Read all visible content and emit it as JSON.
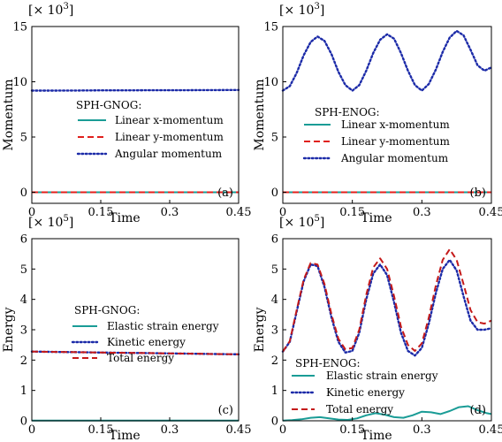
{
  "colors": {
    "elastic": "#1a9c96",
    "linear_x": "#1a9c96",
    "linear_y": "#e0201c",
    "total": "#c41a1a",
    "kinetic": "#1c2ba8",
    "angular": "#1c2ba8"
  },
  "chart_data": [
    {
      "type": "line",
      "panel_label": "(a)",
      "xlabel": "Time",
      "ylabel": "Momentum",
      "multiplier": "[× 10",
      "multiplier_exp": "3",
      "multiplier_close": "]",
      "xlim": [
        0,
        0.45
      ],
      "ylim": [
        -1,
        15
      ],
      "xticks": [
        0,
        0.15,
        0.3,
        0.45
      ],
      "xtick_labels": [
        "0",
        "0.15",
        "0.3",
        "0.45"
      ],
      "yticks": [
        0,
        5,
        10,
        15
      ],
      "ytick_labels": [
        "0",
        "5",
        "10",
        "15"
      ],
      "legend_title": "SPH-GNOG:",
      "legend_position": "center-left",
      "series": [
        {
          "name": "Linear x-momentum",
          "style": "solid",
          "color_key": "linear_x",
          "x": [
            0,
            0.05,
            0.1,
            0.15,
            0.2,
            0.25,
            0.3,
            0.35,
            0.4,
            0.45
          ],
          "y": [
            0,
            0,
            0,
            0,
            0,
            0,
            0,
            0,
            0,
            0
          ]
        },
        {
          "name": "Linear y-momentum",
          "style": "dashed",
          "color_key": "linear_y",
          "x": [
            0,
            0.05,
            0.1,
            0.15,
            0.2,
            0.25,
            0.3,
            0.35,
            0.4,
            0.45
          ],
          "y": [
            0,
            0,
            0,
            0,
            0,
            0,
            0,
            0,
            0,
            0
          ]
        },
        {
          "name": "Angular momentum",
          "style": "dotted",
          "color_key": "angular",
          "x": [
            0,
            0.05,
            0.1,
            0.15,
            0.2,
            0.25,
            0.3,
            0.35,
            0.4,
            0.45
          ],
          "y": [
            9.2,
            9.2,
            9.21,
            9.22,
            9.22,
            9.23,
            9.23,
            9.24,
            9.25,
            9.26
          ]
        }
      ]
    },
    {
      "type": "line",
      "panel_label": "(b)",
      "xlabel": "Time",
      "ylabel": "Momentum",
      "multiplier": "[× 10",
      "multiplier_exp": "3",
      "multiplier_close": "]",
      "xlim": [
        0,
        0.45
      ],
      "ylim": [
        -1,
        15
      ],
      "xticks": [
        0,
        0.15,
        0.3,
        0.45
      ],
      "xtick_labels": [
        "0",
        "0.15",
        "0.3",
        "0.45"
      ],
      "yticks": [
        0,
        5,
        10,
        15
      ],
      "ytick_labels": [
        "0",
        "5",
        "10",
        "15"
      ],
      "legend_title": "SPH-ENOG:",
      "legend_position": "center-right",
      "series": [
        {
          "name": "Linear x-momentum",
          "style": "solid",
          "color_key": "linear_x",
          "x": [
            0,
            0.05,
            0.1,
            0.15,
            0.2,
            0.25,
            0.3,
            0.35,
            0.4,
            0.45
          ],
          "y": [
            0,
            0,
            0,
            0,
            0,
            0,
            0,
            0,
            0,
            0
          ]
        },
        {
          "name": "Linear y-momentum",
          "style": "dashed",
          "color_key": "linear_y",
          "x": [
            0,
            0.05,
            0.1,
            0.15,
            0.2,
            0.25,
            0.3,
            0.35,
            0.4,
            0.45
          ],
          "y": [
            0,
            0,
            0,
            0,
            0,
            0,
            0,
            0,
            0,
            0
          ]
        },
        {
          "name": "Angular momentum",
          "style": "dotted",
          "color_key": "angular",
          "x": [
            0,
            0.015,
            0.03,
            0.045,
            0.06,
            0.075,
            0.09,
            0.105,
            0.12,
            0.135,
            0.15,
            0.165,
            0.18,
            0.195,
            0.21,
            0.225,
            0.24,
            0.255,
            0.27,
            0.285,
            0.3,
            0.315,
            0.33,
            0.345,
            0.36,
            0.375,
            0.39,
            0.405,
            0.42,
            0.435,
            0.45
          ],
          "y": [
            9.2,
            9.6,
            10.8,
            12.4,
            13.6,
            14.1,
            13.7,
            12.5,
            10.9,
            9.7,
            9.2,
            9.7,
            11.0,
            12.6,
            13.8,
            14.3,
            13.9,
            12.6,
            11.0,
            9.7,
            9.2,
            9.8,
            11.1,
            12.7,
            14.0,
            14.6,
            14.2,
            12.9,
            11.5,
            11.0,
            11.3
          ]
        }
      ]
    },
    {
      "type": "line",
      "panel_label": "(c)",
      "xlabel": "Time",
      "ylabel": "Energy",
      "multiplier": "[× 10",
      "multiplier_exp": "5",
      "multiplier_close": "]",
      "xlim": [
        0,
        0.45
      ],
      "ylim": [
        0,
        6
      ],
      "xticks": [
        0,
        0.15,
        0.3,
        0.45
      ],
      "xtick_labels": [
        "0",
        "0.15",
        "0.3",
        "0.45"
      ],
      "yticks": [
        0,
        1,
        2,
        3,
        4,
        5,
        6
      ],
      "ytick_labels": [
        "0",
        "1",
        "2",
        "3",
        "4",
        "5",
        "6"
      ],
      "legend_title": "SPH-GNOG:",
      "legend_position": "top-left",
      "series": [
        {
          "name": "Elastic strain energy",
          "style": "solid",
          "color_key": "elastic",
          "x": [
            0,
            0.05,
            0.1,
            0.15,
            0.2,
            0.25,
            0.3,
            0.35,
            0.4,
            0.45
          ],
          "y": [
            0.005,
            0.005,
            0.005,
            0.005,
            0.005,
            0.005,
            0.005,
            0.005,
            0.005,
            0.005
          ]
        },
        {
          "name": "Kinetic energy",
          "style": "dotted",
          "color_key": "kinetic",
          "x": [
            0,
            0.05,
            0.1,
            0.15,
            0.2,
            0.25,
            0.3,
            0.35,
            0.4,
            0.45
          ],
          "y": [
            2.28,
            2.27,
            2.26,
            2.25,
            2.24,
            2.23,
            2.22,
            2.21,
            2.2,
            2.19
          ]
        },
        {
          "name": "Total energy",
          "style": "dashed",
          "color_key": "total",
          "x": [
            0,
            0.05,
            0.1,
            0.15,
            0.2,
            0.25,
            0.3,
            0.35,
            0.4,
            0.45
          ],
          "y": [
            2.28,
            2.27,
            2.26,
            2.25,
            2.24,
            2.23,
            2.22,
            2.21,
            2.2,
            2.19
          ]
        }
      ]
    },
    {
      "type": "line",
      "panel_label": "(d)",
      "xlabel": "Time",
      "ylabel": "Energy",
      "multiplier": "[× 10",
      "multiplier_exp": "5",
      "multiplier_close": "]",
      "xlim": [
        0,
        0.45
      ],
      "ylim": [
        0,
        6
      ],
      "xticks": [
        0,
        0.15,
        0.3,
        0.45
      ],
      "xtick_labels": [
        "0",
        "0.15",
        "0.3",
        "0.45"
      ],
      "yticks": [
        0,
        1,
        2,
        3,
        4,
        5,
        6
      ],
      "ytick_labels": [
        "0",
        "1",
        "2",
        "3",
        "4",
        "5",
        "6"
      ],
      "legend_title": "SPH-ENOG:",
      "legend_position": "bottom-left",
      "series": [
        {
          "name": "Elastic strain energy",
          "style": "solid",
          "color_key": "elastic",
          "x": [
            0,
            0.02,
            0.04,
            0.06,
            0.08,
            0.1,
            0.12,
            0.14,
            0.16,
            0.18,
            0.2,
            0.22,
            0.24,
            0.26,
            0.28,
            0.3,
            0.32,
            0.34,
            0.36,
            0.38,
            0.4,
            0.42,
            0.44,
            0.45
          ],
          "y": [
            0.01,
            0.02,
            0.05,
            0.1,
            0.12,
            0.08,
            0.04,
            0.03,
            0.08,
            0.18,
            0.25,
            0.2,
            0.12,
            0.1,
            0.18,
            0.3,
            0.28,
            0.22,
            0.32,
            0.45,
            0.48,
            0.35,
            0.25,
            0.22
          ]
        },
        {
          "name": "Kinetic energy",
          "style": "dotted",
          "color_key": "kinetic",
          "x": [
            0,
            0.015,
            0.03,
            0.045,
            0.06,
            0.075,
            0.09,
            0.105,
            0.12,
            0.135,
            0.15,
            0.165,
            0.18,
            0.195,
            0.21,
            0.225,
            0.24,
            0.255,
            0.27,
            0.285,
            0.3,
            0.315,
            0.33,
            0.345,
            0.36,
            0.375,
            0.39,
            0.405,
            0.42,
            0.435,
            0.45
          ],
          "y": [
            2.28,
            2.6,
            3.6,
            4.6,
            5.15,
            5.1,
            4.4,
            3.4,
            2.6,
            2.25,
            2.3,
            2.9,
            4.0,
            4.85,
            5.15,
            4.8,
            3.9,
            2.9,
            2.3,
            2.15,
            2.4,
            3.2,
            4.2,
            5.0,
            5.3,
            4.95,
            4.1,
            3.3,
            3.0,
            3.0,
            3.05
          ]
        },
        {
          "name": "Total energy",
          "style": "dashed",
          "color_key": "total",
          "x": [
            0,
            0.015,
            0.03,
            0.045,
            0.06,
            0.075,
            0.09,
            0.105,
            0.12,
            0.135,
            0.15,
            0.165,
            0.18,
            0.195,
            0.21,
            0.225,
            0.24,
            0.255,
            0.27,
            0.285,
            0.3,
            0.315,
            0.33,
            0.345,
            0.36,
            0.375,
            0.39,
            0.405,
            0.42,
            0.435,
            0.45
          ],
          "y": [
            2.28,
            2.62,
            3.65,
            4.65,
            5.2,
            5.15,
            4.5,
            3.5,
            2.7,
            2.35,
            2.4,
            3.0,
            4.15,
            5.05,
            5.35,
            5.0,
            4.1,
            3.1,
            2.5,
            2.3,
            2.55,
            3.4,
            4.45,
            5.3,
            5.65,
            5.3,
            4.5,
            3.65,
            3.25,
            3.2,
            3.3
          ]
        }
      ]
    }
  ]
}
